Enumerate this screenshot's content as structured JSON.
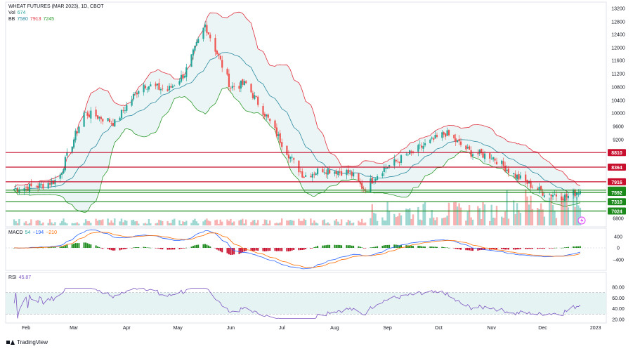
{
  "legend": {
    "title": "WHEAT FUTURES (MAR 2023), 1D, CBOT",
    "vol_label": "Vol",
    "vol_value": "674",
    "bb_label": "BB",
    "bb_values": [
      "7580",
      "7913",
      "7245"
    ],
    "macd_label": "MACD",
    "macd_values": [
      "54",
      "−194",
      "−210"
    ],
    "rsi_label": "RSI",
    "rsi_value": "45.87"
  },
  "footer": {
    "brand": "TradingView"
  },
  "colors": {
    "up": "#26a69a",
    "down": "#ef5350",
    "bb_upper": "#e0303f",
    "bb_lower": "#2e9a2e",
    "bb_basis": "#2a8aa0",
    "bb_fill": "#e6f3f3",
    "red_level": "#c8102e",
    "green_level": "#1b8a1b",
    "macd": "#2962ff",
    "signal": "#ff6d00",
    "rsi": "#7e57c2",
    "rsi_band": "#e6f3f3"
  },
  "chart_data": [
    {
      "type": "candlestick",
      "title": "WHEAT FUTURES (MAR 2023), 1D, CBOT",
      "x_months": [
        "Feb",
        "Mar",
        "Apr",
        "May",
        "Jun",
        "Jul",
        "Aug",
        "Sep",
        "Oct",
        "Nov",
        "Dec",
        "2023"
      ],
      "y_ticks": [
        "13200",
        "12800",
        "12400",
        "12000",
        "11600",
        "11200",
        "10800",
        "10400",
        "10000",
        "9600",
        "9200",
        "6800"
      ],
      "ylim": [
        6800,
        13200
      ],
      "approx_close_path": [
        {
          "date": "2022-01-25",
          "close": 7700
        },
        {
          "date": "2022-02-10",
          "close": 7800
        },
        {
          "date": "2022-02-20",
          "close": 8000
        },
        {
          "date": "2022-02-25",
          "close": 8700
        },
        {
          "date": "2022-03-07",
          "close": 10000
        },
        {
          "date": "2022-03-15",
          "close": 9900
        },
        {
          "date": "2022-03-25",
          "close": 9700
        },
        {
          "date": "2022-04-10",
          "close": 10900
        },
        {
          "date": "2022-04-25",
          "close": 10700
        },
        {
          "date": "2022-05-05",
          "close": 11200
        },
        {
          "date": "2022-05-17",
          "close": 12700
        },
        {
          "date": "2022-05-25",
          "close": 11700
        },
        {
          "date": "2022-06-01",
          "close": 10800
        },
        {
          "date": "2022-06-10",
          "close": 10900
        },
        {
          "date": "2022-06-22",
          "close": 9900
        },
        {
          "date": "2022-07-01",
          "close": 9100
        },
        {
          "date": "2022-07-08",
          "close": 8500
        },
        {
          "date": "2022-07-14",
          "close": 8100
        },
        {
          "date": "2022-07-25",
          "close": 8300
        },
        {
          "date": "2022-08-10",
          "close": 8200
        },
        {
          "date": "2022-08-18",
          "close": 7700
        },
        {
          "date": "2022-08-29",
          "close": 8300
        },
        {
          "date": "2022-09-15",
          "close": 8800
        },
        {
          "date": "2022-10-05",
          "close": 9400
        },
        {
          "date": "2022-10-20",
          "close": 8800
        },
        {
          "date": "2022-11-01",
          "close": 8700
        },
        {
          "date": "2022-11-15",
          "close": 8100
        },
        {
          "date": "2022-12-01",
          "close": 7600
        },
        {
          "date": "2022-12-15",
          "close": 7450
        },
        {
          "date": "2022-12-23",
          "close": 7660
        }
      ],
      "horizontal_levels": [
        {
          "label": "8810",
          "color": "red"
        },
        {
          "label": "8364",
          "color": "red"
        },
        {
          "label": "7916",
          "color": "red"
        },
        {
          "label": "7662",
          "color": "green"
        },
        {
          "label": "7592",
          "color": "green"
        },
        {
          "label": "7310",
          "color": "green"
        },
        {
          "label": "7024",
          "color": "green"
        }
      ],
      "bollinger": {
        "upper": "7580",
        "basis": "7913",
        "lower": "7245"
      },
      "volume_last": "674"
    },
    {
      "type": "line",
      "title": "MACD",
      "values_shown": [
        "54",
        "−194",
        "−210"
      ],
      "y_ticks": [
        "400",
        "0",
        "−400"
      ],
      "ylim": [
        -600,
        500
      ]
    },
    {
      "type": "line",
      "title": "RSI",
      "last_value": 45.87,
      "y_ticks": [
        "80.00",
        "60.00",
        "40.00",
        "20.00"
      ],
      "ylim": [
        20,
        80
      ],
      "band": [
        30,
        70
      ]
    }
  ]
}
